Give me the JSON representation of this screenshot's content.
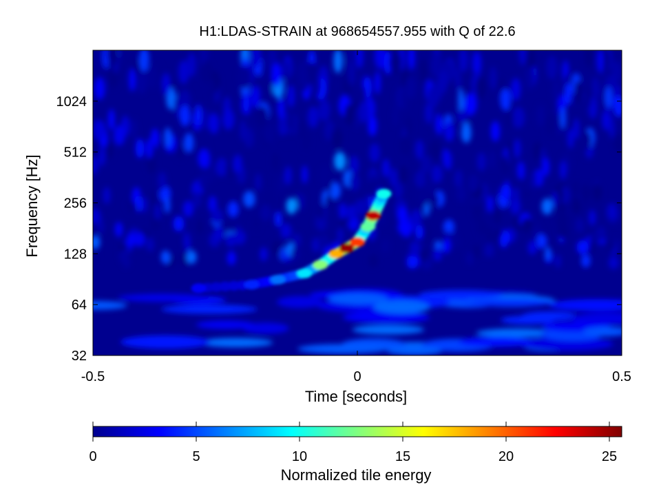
{
  "chart_data": {
    "type": "heatmap",
    "title": "H1:LDAS-STRAIN at 968654557.955 with Q of 22.6",
    "xlabel": "Time [seconds]",
    "ylabel": "Frequency [Hz]",
    "xlim": [
      -0.5,
      0.5
    ],
    "ylim": [
      32,
      2048
    ],
    "yscale": "log2",
    "xticks": [
      -0.5,
      0,
      0.5
    ],
    "xtick_labels": [
      "-0.5",
      "0",
      "0.5"
    ],
    "yticks": [
      32,
      64,
      128,
      256,
      512,
      1024
    ],
    "ytick_labels": [
      "32",
      "64",
      "128",
      "256",
      "512",
      "1024"
    ],
    "colormap": "jet",
    "background_color": "#00008f",
    "colorbar": {
      "label": "Normalized tile energy",
      "range": [
        0,
        25.6
      ],
      "ticks": [
        0,
        5,
        10,
        15,
        20,
        25
      ],
      "tick_labels": [
        "0",
        "5",
        "10",
        "15",
        "20",
        "25"
      ]
    },
    "chirp_track": [
      {
        "t": -0.3,
        "f": 80,
        "energy": 3
      },
      {
        "t": -0.2,
        "f": 84,
        "energy": 4
      },
      {
        "t": -0.15,
        "f": 90,
        "energy": 6
      },
      {
        "t": -0.1,
        "f": 98,
        "energy": 9
      },
      {
        "t": -0.07,
        "f": 110,
        "energy": 13
      },
      {
        "t": -0.04,
        "f": 128,
        "energy": 18
      },
      {
        "t": -0.02,
        "f": 138,
        "energy": 25
      },
      {
        "t": 0.0,
        "f": 150,
        "energy": 21
      },
      {
        "t": 0.02,
        "f": 185,
        "energy": 12
      },
      {
        "t": 0.03,
        "f": 215,
        "energy": 24
      },
      {
        "t": 0.05,
        "f": 290,
        "energy": 10
      }
    ]
  }
}
